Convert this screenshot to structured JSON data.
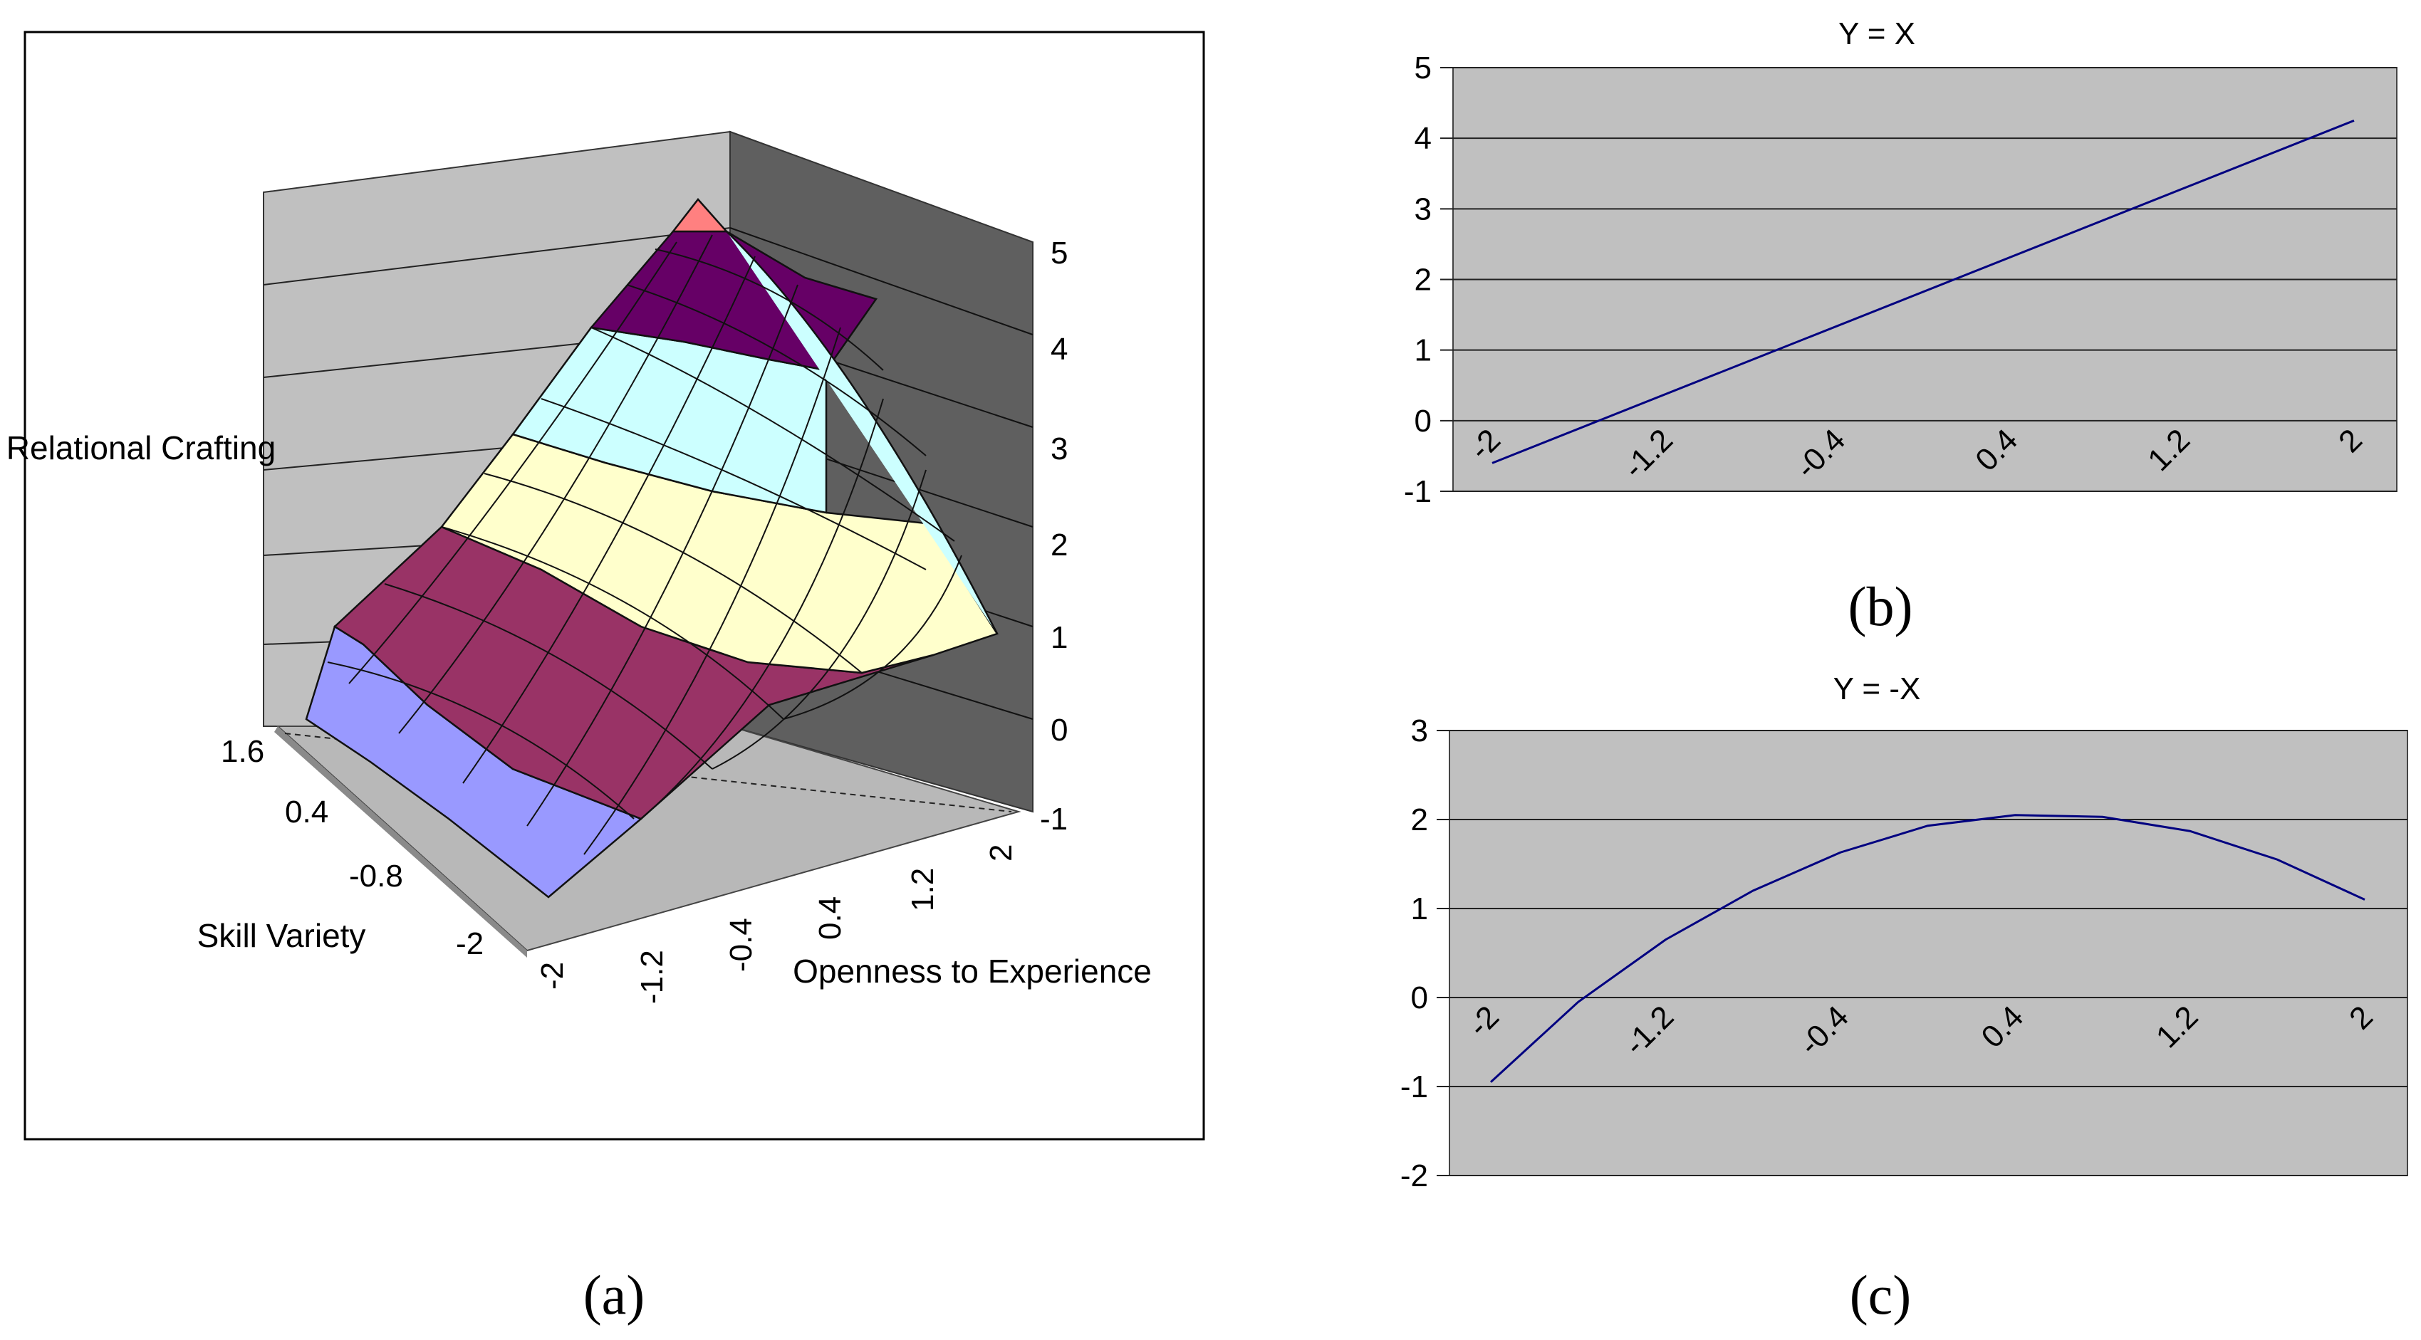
{
  "chart_data": [
    {
      "id": "a",
      "type": "surface3d",
      "panel_label": "(a)",
      "zlabel": "Relational Crafting",
      "xlabel": "Openness to Experience",
      "ylabel": "Skill Variety",
      "zticks": [
        "5",
        "4",
        "3",
        "2",
        "1",
        "0",
        "-1"
      ],
      "xticks": [
        "-2",
        "-1.2",
        "-0.4",
        "0.4",
        "1.2",
        "2"
      ],
      "yticks": [
        "1.6",
        "0.4",
        "-0.8",
        "-2"
      ],
      "zlim": [
        -1,
        5
      ],
      "band_colors": [
        "#9999ff",
        "#993366",
        "#ffffcc",
        "#ccffff",
        "#660066",
        "#ff8080"
      ],
      "wall_color": "#c0c0c0",
      "wall_dark_color": "#606060"
    },
    {
      "id": "b",
      "type": "line",
      "panel_label": "(b)",
      "title": "Y = X",
      "x": [
        -2,
        2
      ],
      "xticks": [
        "-2",
        "-1.2",
        "-0.4",
        "0.4",
        "1.2",
        "2"
      ],
      "yticks": [
        "5",
        "4",
        "3",
        "2",
        "1",
        "0",
        "-1"
      ],
      "ylim": [
        -1,
        5
      ],
      "series": [
        {
          "name": "Y = X",
          "values": [
            -0.6,
            4.25
          ]
        }
      ],
      "line_color": "#000080",
      "plot_bg": "#c0c0c0"
    },
    {
      "id": "c",
      "type": "line",
      "panel_label": "(c)",
      "title": "Y = -X",
      "x": [
        -2,
        -1.6,
        -1.2,
        -0.8,
        -0.4,
        0,
        0.4,
        0.8,
        1.2,
        1.6,
        2
      ],
      "xticks": [
        "-2",
        "-1.2",
        "-0.4",
        "0.4",
        "1.2",
        "2"
      ],
      "yticks": [
        "3",
        "2",
        "1",
        "0",
        "-1",
        "-2"
      ],
      "ylim": [
        -2,
        3
      ],
      "series": [
        {
          "name": "Y = -X",
          "values": [
            -0.95,
            -0.05,
            0.65,
            1.2,
            1.63,
            1.93,
            2.05,
            2.03,
            1.87,
            1.55,
            1.1
          ]
        }
      ],
      "line_color": "#000080",
      "plot_bg": "#c0c0c0"
    }
  ]
}
